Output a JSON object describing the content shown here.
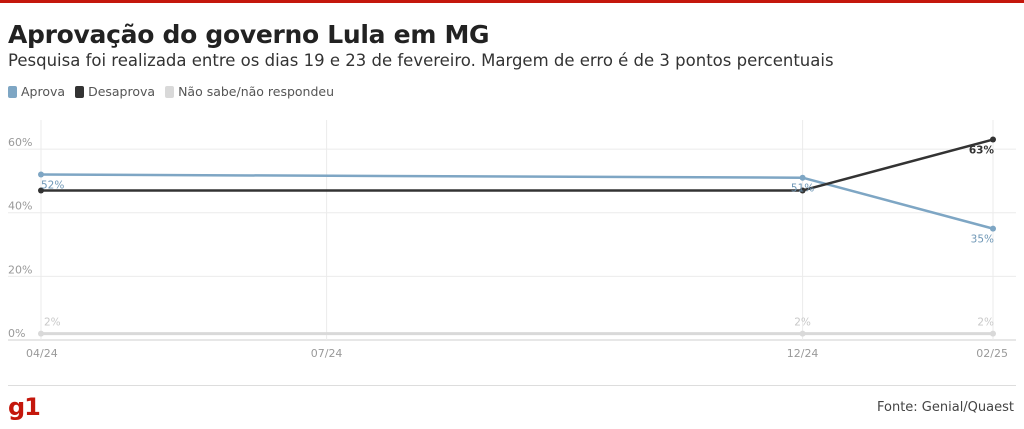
{
  "header": {
    "title": "Aprovação do governo Lula em MG",
    "subtitle": "Pesquisa foi realizada entre os dias 19 e 23 de fevereiro. Margem de erro é de 3 pontos percentuais"
  },
  "footer": {
    "logo": "g1",
    "source": "Fonte: Genial/Quaest"
  },
  "colors": {
    "brand": "#c4170c",
    "aprova": "#7ea6c4",
    "desaprova": "#333333",
    "nao_sabe": "#d9d9d9"
  },
  "chart_data": {
    "type": "line",
    "title": "Aprovação do governo Lula em MG",
    "subtitle": "Pesquisa foi realizada entre os dias 19 e 23 de fevereiro. Margem de erro é de 3 pontos percentuais",
    "x": [
      "2024-04",
      "2024-12",
      "2025-02"
    ],
    "x_tick_labels": [
      "04/24",
      "07/24",
      "12/24",
      "02/25"
    ],
    "x_ticks": [
      "2024-04",
      "2024-07",
      "2024-12",
      "2025-02"
    ],
    "y_ticks": [
      0,
      20,
      40,
      60
    ],
    "y_tick_labels": [
      "0%",
      "20%",
      "40%",
      "60%"
    ],
    "ylim": [
      0,
      66
    ],
    "grid": true,
    "legend": "top-left",
    "series": [
      {
        "name": "Aprova",
        "color": "#7ea6c4",
        "values": [
          52,
          51,
          35
        ],
        "labels": [
          "52%",
          "51%",
          "35%"
        ]
      },
      {
        "name": "Desaprova",
        "color": "#333333",
        "values": [
          47,
          47,
          63
        ],
        "labels": [
          "",
          "",
          "63%"
        ]
      },
      {
        "name": "Não sabe/não respondeu",
        "color": "#d9d9d9",
        "values": [
          2,
          2,
          2
        ],
        "labels": [
          "2%",
          "2%",
          "2%"
        ]
      }
    ]
  }
}
